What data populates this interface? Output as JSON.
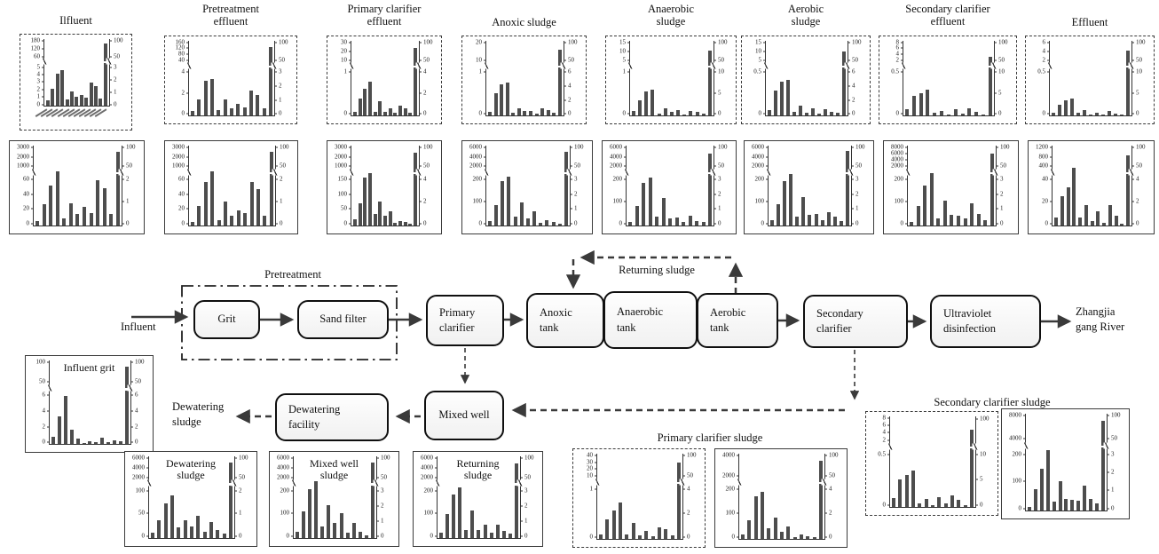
{
  "colors": {
    "bar": "#4d4d4d",
    "axis": "#333333",
    "panel_border": "#3b3b3b",
    "ink": "#111111",
    "arrow": "#3a3a3a"
  },
  "flow": {
    "influent": "Influent",
    "pretreatment": "Pretreatment",
    "returning_sludge": "Returning sludge",
    "dewatering_sludge": "Dewatering\nsludge",
    "river": "Zhangjia\ngang River",
    "nodes": {
      "grit": "Grit",
      "sand_filter": "Sand filter",
      "primary_clarifier": "Primary\nclarifier",
      "anoxic_tank": "Anoxic\ntank",
      "anaerobic_tank": "Anaerobic\ntank",
      "aerobic_tank": "Aerobic\ntank",
      "secondary_clarifier": "Secondary\nclarifier",
      "ultraviolet_disinfection": "Ultraviolet\ndisinfection",
      "mixed_well": "Mixed well",
      "dewatering_facility": "Dewatering\nfacility"
    }
  },
  "group_labels": {
    "primary": "Primary clarifier sludge",
    "secondary": "Secondary clarifier sludge"
  },
  "chart_data": [
    {
      "id": "r1c1",
      "type": "bar",
      "title": "Ilfluent",
      "border": "dashed",
      "x_labels_illegible": true,
      "left_top": [
        "180",
        "120",
        "60"
      ],
      "left_bottom": [
        "5",
        "4",
        "3",
        "2",
        "1",
        "0"
      ],
      "right_top": [
        "100",
        "50"
      ],
      "right_bottom": [
        "3",
        "2",
        "1",
        "0"
      ],
      "bars": [
        8,
        26,
        48,
        54,
        9,
        22,
        14,
        16,
        12,
        35,
        30,
        11,
        93
      ]
    },
    {
      "id": "r1c2",
      "type": "bar",
      "title": "Pretreatment\neffluent",
      "border": "dashed",
      "left_top": [
        "160",
        "120",
        "80",
        "40"
      ],
      "left_bottom": [
        "4",
        "2",
        "0"
      ],
      "right_top": [
        "100",
        "50"
      ],
      "right_bottom": [
        "3",
        "2",
        "1",
        "0"
      ],
      "bars": [
        6,
        21,
        46,
        49,
        7,
        21,
        9,
        15,
        11,
        33,
        27,
        9,
        92
      ]
    },
    {
      "id": "r1c3",
      "type": "bar",
      "title": "Primary clarifier\neffluent",
      "border": "dashed",
      "left_top": [
        "30",
        "20",
        "10"
      ],
      "left_bottom": [
        "1",
        "0"
      ],
      "right_top": [
        "100",
        "50"
      ],
      "right_bottom": [
        "4",
        "2",
        "0"
      ],
      "bars": [
        5,
        23,
        36,
        45,
        5,
        19,
        5,
        9,
        3,
        13,
        10,
        4,
        91
      ]
    },
    {
      "id": "r1c4",
      "type": "bar",
      "title": "Anoxic sludge",
      "border": "dashed",
      "left_top": [
        "20",
        "10"
      ],
      "left_bottom": [
        "1",
        "0"
      ],
      "right_top": [
        "100",
        "50"
      ],
      "right_bottom": [
        "6",
        "4",
        "2",
        "0"
      ],
      "bars": [
        5,
        30,
        42,
        44,
        3,
        10,
        6,
        6,
        2,
        9,
        7,
        4,
        88
      ]
    },
    {
      "id": "r1c5",
      "type": "bar",
      "title": "Anaerobic\nsludge",
      "border": "dashed",
      "left_top": [
        "15",
        "10",
        "5"
      ],
      "left_bottom": [
        "1",
        "0"
      ],
      "right_top": [
        "100",
        "50"
      ],
      "right_bottom": [
        "10",
        "5",
        "0"
      ],
      "bars": [
        6,
        20,
        32,
        34,
        2,
        9,
        5,
        7,
        1,
        6,
        5,
        2,
        87
      ]
    },
    {
      "id": "r1c6",
      "type": "bar",
      "title": "Aerobic\nsludge",
      "border": "dashed",
      "left_top": [
        "15",
        "10",
        "5"
      ],
      "left_bottom": [
        "0.5",
        "0"
      ],
      "right_top": [
        "100",
        "50"
      ],
      "right_bottom": [
        "6",
        "4",
        "2",
        "0"
      ],
      "bars": [
        7,
        33,
        45,
        48,
        5,
        13,
        4,
        9,
        2,
        8,
        5,
        3,
        86
      ]
    },
    {
      "id": "r1c7",
      "type": "bar",
      "title": "Secondary clarifier\neffluent",
      "border": "dashed",
      "left_top": [
        "8",
        "6",
        "4",
        "2"
      ],
      "left_bottom": [
        "0.5",
        "0"
      ],
      "right_top": [
        "100",
        "50"
      ],
      "right_bottom": [
        "10",
        "5",
        "0"
      ],
      "bars": [
        8,
        26,
        30,
        34,
        3,
        6,
        1,
        8,
        2,
        9,
        5,
        1,
        79
      ]
    },
    {
      "id": "r1c8",
      "type": "bar",
      "title": "Effluent",
      "border": "dashed",
      "left_top": [
        "6",
        "4",
        "2"
      ],
      "left_bottom": [
        "0.5",
        "0"
      ],
      "right_top": [
        "100",
        "50"
      ],
      "right_bottom": [
        "10",
        "5",
        "0"
      ],
      "bars": [
        4,
        14,
        20,
        23,
        3,
        7,
        1,
        4,
        1,
        6,
        2,
        1,
        87
      ]
    },
    {
      "id": "r2c1",
      "type": "bar",
      "title": "",
      "border": "solid",
      "left_top": [
        "3000",
        "2000",
        "1000"
      ],
      "left_bottom": [
        "60",
        "40",
        "20",
        "0"
      ],
      "right_top": [
        "100",
        "50"
      ],
      "right_bottom": [
        "2",
        "1",
        "0"
      ],
      "bars": [
        6,
        27,
        50,
        68,
        9,
        28,
        15,
        23,
        16,
        57,
        47,
        14,
        92
      ]
    },
    {
      "id": "r2c2",
      "type": "bar",
      "title": "",
      "border": "solid",
      "left_top": [
        "3000",
        "2000",
        "1000"
      ],
      "left_bottom": [
        "60",
        "40",
        "20",
        "0"
      ],
      "right_top": [
        "100",
        "50"
      ],
      "right_bottom": [
        "2",
        "1",
        "0"
      ],
      "bars": [
        5,
        24,
        55,
        68,
        7,
        30,
        12,
        19,
        16,
        55,
        46,
        12,
        92
      ]
    },
    {
      "id": "r2c3",
      "type": "bar",
      "title": "",
      "border": "solid",
      "left_top": [
        "3000",
        "2000",
        "1000"
      ],
      "left_bottom": [
        "150",
        "100",
        "50",
        "0"
      ],
      "right_top": [
        "100",
        "50"
      ],
      "right_bottom": [
        "4",
        "2",
        "0"
      ],
      "bars": [
        8,
        28,
        60,
        66,
        15,
        30,
        12,
        18,
        3,
        6,
        4,
        2,
        91
      ]
    },
    {
      "id": "r2c4",
      "type": "bar",
      "title": "",
      "border": "solid",
      "left_top": [
        "6000",
        "4000",
        "2000"
      ],
      "left_bottom": [
        "200",
        "100",
        "0"
      ],
      "right_top": [
        "100",
        "50"
      ],
      "right_bottom": [
        "3",
        "2",
        "1",
        "0"
      ],
      "bars": [
        6,
        26,
        56,
        61,
        11,
        29,
        9,
        18,
        3,
        7,
        4,
        2,
        92
      ]
    },
    {
      "id": "r2c5",
      "type": "bar",
      "title": "",
      "border": "solid",
      "left_top": [
        "6000",
        "4000",
        "2000"
      ],
      "left_bottom": [
        "200",
        "100",
        "0"
      ],
      "right_top": [
        "100",
        "50"
      ],
      "right_bottom": [
        "3",
        "2",
        "1",
        "0"
      ],
      "bars": [
        5,
        24,
        53,
        60,
        11,
        34,
        9,
        10,
        5,
        12,
        6,
        4,
        90
      ]
    },
    {
      "id": "r2c6",
      "type": "bar",
      "title": "",
      "border": "solid",
      "left_top": [
        "6000",
        "4000",
        "2000"
      ],
      "left_bottom": [
        "200",
        "100",
        "0"
      ],
      "right_top": [
        "100",
        "50"
      ],
      "right_bottom": [
        "3",
        "2",
        "1",
        "0"
      ],
      "bars": [
        7,
        27,
        56,
        65,
        11,
        36,
        13,
        15,
        7,
        17,
        11,
        6,
        93
      ]
    },
    {
      "id": "r2c7",
      "type": "bar",
      "title": "",
      "border": "solid",
      "left_top": [
        "8000",
        "6000",
        "4000",
        "2000"
      ],
      "left_bottom": [
        "200",
        "100",
        "0"
      ],
      "right_top": [
        "100",
        "50"
      ],
      "right_bottom": [
        "3",
        "2",
        "1",
        "0"
      ],
      "bars": [
        4,
        25,
        50,
        66,
        9,
        31,
        13,
        12,
        9,
        28,
        14,
        7,
        90
      ]
    },
    {
      "id": "r2c8",
      "type": "bar",
      "title": "",
      "border": "solid",
      "left_top": [
        "1200",
        "800",
        "400"
      ],
      "left_bottom": [
        "40",
        "20",
        "0"
      ],
      "right_top": [
        "100",
        "50"
      ],
      "right_bottom": [
        "4",
        "2",
        "0"
      ],
      "bars": [
        10,
        37,
        48,
        72,
        10,
        26,
        6,
        18,
        3,
        26,
        12,
        2,
        88
      ]
    },
    {
      "id": "grit",
      "type": "bar",
      "title": "Influent grit",
      "border": "solid",
      "left_top": [
        "100",
        "50"
      ],
      "left_bottom": [
        "6",
        "4",
        "2",
        "0"
      ],
      "right_top": [
        "100",
        "50"
      ],
      "right_bottom": [
        "6",
        "4",
        "2",
        "0"
      ],
      "bars": [
        9,
        33,
        57,
        17,
        6,
        1,
        3,
        2,
        7,
        2,
        4,
        3,
        93
      ]
    },
    {
      "id": "dewatering",
      "type": "bar",
      "title": "Dewatering\nsludge",
      "border": "solid",
      "left_top": [
        "6000",
        "4000",
        "2000"
      ],
      "left_bottom": [
        "100",
        "50",
        "0"
      ],
      "right_top": [
        "100",
        "50"
      ],
      "right_bottom": [
        "2",
        "1",
        "0"
      ],
      "bars": [
        6,
        22,
        42,
        52,
        13,
        22,
        14,
        27,
        8,
        20,
        10,
        5,
        92
      ]
    },
    {
      "id": "mixedwell",
      "type": "bar",
      "title": "Mixed well\nsludge",
      "border": "solid",
      "left_top": [
        "6000",
        "4000",
        "2000"
      ],
      "left_bottom": [
        "200",
        "100",
        "0"
      ],
      "right_top": [
        "100",
        "50"
      ],
      "right_bottom": [
        "3",
        "2",
        "1",
        "0"
      ],
      "bars": [
        8,
        33,
        60,
        70,
        14,
        40,
        19,
        30,
        6,
        18,
        8,
        3,
        92
      ]
    },
    {
      "id": "returning",
      "type": "bar",
      "title": "Returning\nsludge",
      "border": "solid",
      "left_top": [
        "6000",
        "4000",
        "2000"
      ],
      "left_bottom": [
        "200",
        "100",
        "0"
      ],
      "right_top": [
        "100",
        "50"
      ],
      "right_bottom": [
        "3",
        "2",
        "1",
        "0"
      ],
      "bars": [
        7,
        29,
        53,
        62,
        10,
        34,
        10,
        16,
        7,
        16,
        9,
        5,
        91
      ]
    },
    {
      "id": "pcs1",
      "type": "bar",
      "title": "",
      "border": "dashed",
      "left_top": [
        "40",
        "30",
        "20",
        "10"
      ],
      "left_bottom": [
        "1",
        "0"
      ],
      "right_top": [
        "100",
        "50"
      ],
      "right_bottom": [
        "4",
        "2",
        "0"
      ],
      "bars": [
        5,
        23,
        33,
        43,
        5,
        19,
        4,
        9,
        3,
        14,
        11,
        4,
        90
      ]
    },
    {
      "id": "pcs2",
      "type": "bar",
      "title": "",
      "border": "solid",
      "left_top": [
        "4000",
        "2000"
      ],
      "left_bottom": [
        "200",
        "100",
        "0"
      ],
      "right_top": [
        "100",
        "50"
      ],
      "right_bottom": [
        "4",
        "2",
        "0"
      ],
      "bars": [
        5,
        22,
        50,
        55,
        13,
        25,
        8,
        15,
        2,
        5,
        3,
        2,
        92
      ]
    },
    {
      "id": "scs1",
      "type": "bar",
      "title": "",
      "border": "dashed",
      "left_top": [
        "8",
        "6",
        "4",
        "2"
      ],
      "left_bottom": [
        "0.5",
        "0"
      ],
      "right_top": [
        "100"
      ],
      "right_bottom": [
        "10",
        "5",
        "0"
      ],
      "bars": [
        10,
        30,
        35,
        40,
        4,
        9,
        2,
        11,
        4,
        13,
        8,
        2,
        85
      ]
    },
    {
      "id": "scs2",
      "type": "bar",
      "title": "",
      "border": "solid",
      "left_top": [
        "8000",
        "4000"
      ],
      "left_bottom": [
        "200",
        "100",
        "0"
      ],
      "right_top": [
        "100",
        "50"
      ],
      "right_bottom": [
        "3",
        "2",
        "1",
        "0"
      ],
      "bars": [
        4,
        22,
        43,
        62,
        9,
        30,
        12,
        11,
        10,
        26,
        12,
        7,
        93
      ]
    }
  ]
}
